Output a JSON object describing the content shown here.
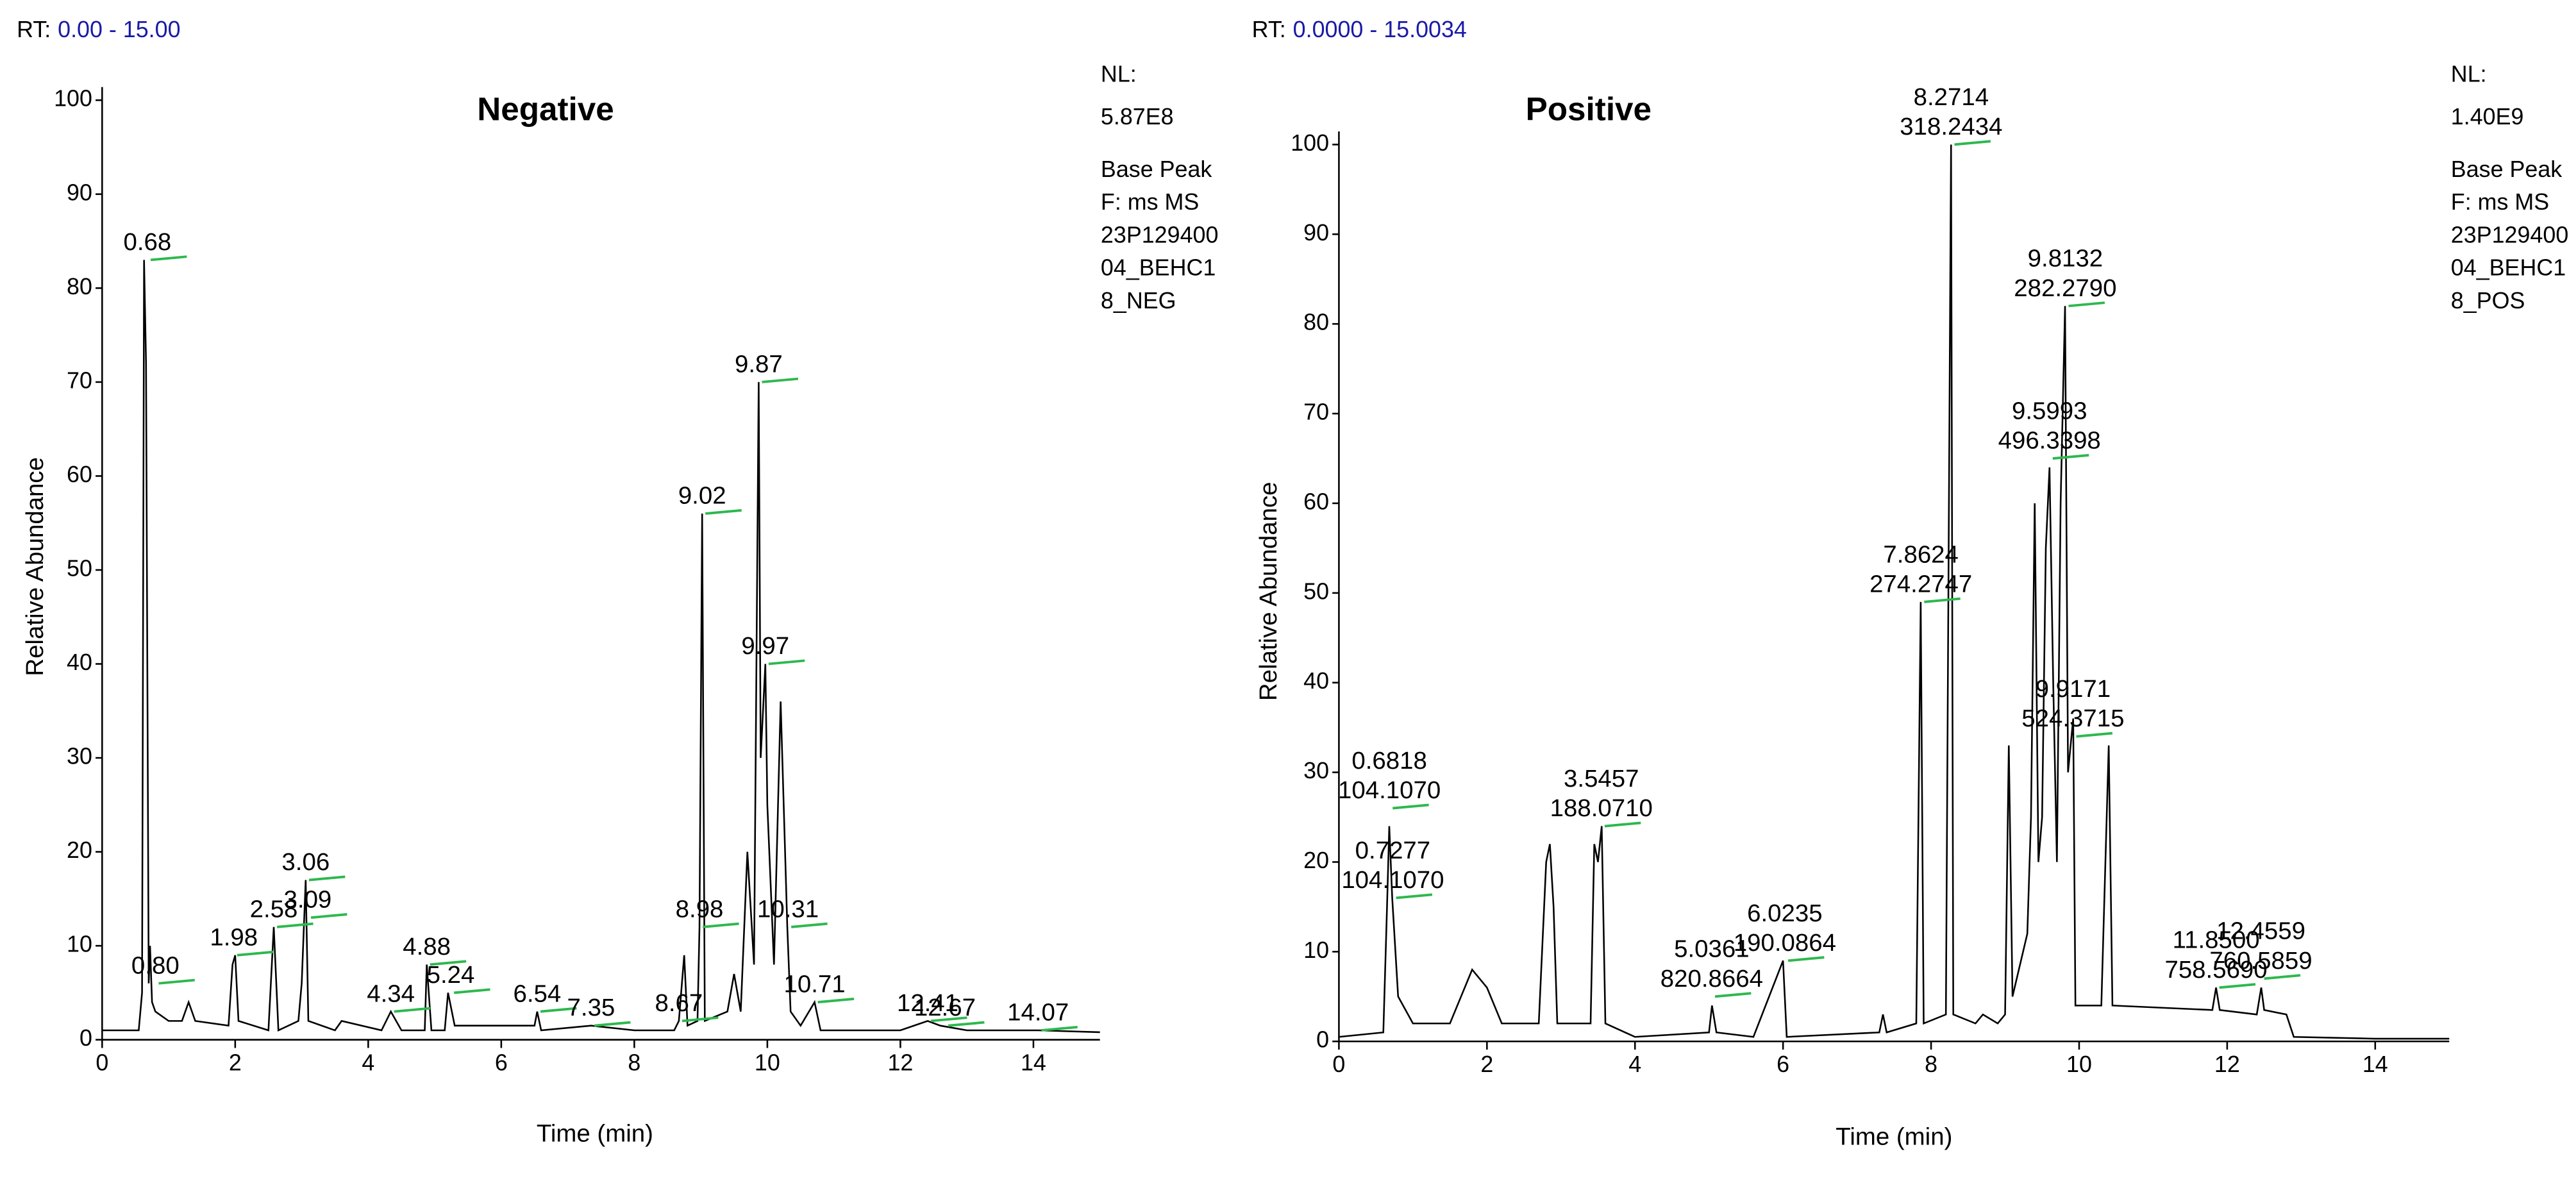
{
  "chart_data": [
    {
      "type": "line",
      "title": "Negative",
      "rt_label": "RT:",
      "rt_range": "0.00 - 15.00",
      "info": [
        "NL:",
        "5.87E8",
        "Base Peak",
        "F: ms  MS",
        "23P129400",
        "04_BEHC1",
        "8_NEG"
      ],
      "x_label": "Time (min)",
      "y_label": "Relative Abundance",
      "color": "#000000",
      "x": [
        0,
        0.55,
        0.6,
        0.63,
        0.66,
        0.7,
        0.72,
        0.75,
        0.8,
        1.0,
        1.2,
        1.3,
        1.4,
        1.9,
        1.96,
        2.0,
        2.05,
        2.5,
        2.58,
        2.65,
        2.95,
        3.0,
        3.06,
        3.1,
        3.5,
        3.6,
        4.2,
        4.34,
        4.5,
        4.85,
        4.88,
        4.95,
        5.15,
        5.2,
        5.3,
        6.5,
        6.54,
        6.6,
        7.35,
        8.0,
        8.6,
        8.67,
        8.75,
        8.8,
        8.95,
        8.98,
        9.02,
        9.06,
        9.4,
        9.5,
        9.6,
        9.7,
        9.8,
        9.87,
        9.9,
        9.97,
        10.0,
        10.1,
        10.2,
        10.3,
        10.35,
        10.5,
        10.71,
        10.8,
        12.0,
        12.41,
        12.6,
        13.0,
        14.0,
        14.07,
        15
      ],
      "values": [
        1,
        1,
        5,
        83,
        72,
        6,
        10,
        4,
        3,
        2,
        2,
        4,
        2,
        1.5,
        8,
        9,
        2,
        1,
        12,
        1,
        2,
        6,
        17,
        2,
        1,
        2,
        1,
        3,
        1,
        1,
        8,
        1,
        1,
        5,
        1.5,
        1.5,
        3,
        1,
        1.5,
        1,
        1,
        2,
        9,
        1.5,
        2,
        12,
        56,
        2,
        3,
        7,
        3,
        20,
        8,
        70,
        30,
        40,
        25,
        8,
        36,
        12,
        3,
        1.5,
        4,
        1,
        1,
        2,
        1.5,
        1,
        1,
        1,
        0.8
      ],
      "annotations": [
        {
          "x": 0.68,
          "y": 83,
          "lines": [
            "0.68"
          ]
        },
        {
          "x": 0.8,
          "y": 6,
          "lines": [
            "0.80"
          ]
        },
        {
          "x": 1.98,
          "y": 9,
          "lines": [
            "1.98"
          ]
        },
        {
          "x": 2.58,
          "y": 12,
          "lines": [
            "2.58"
          ]
        },
        {
          "x": 3.06,
          "y": 17,
          "lines": [
            "3.06"
          ]
        },
        {
          "x": 3.09,
          "y": 13,
          "lines": [
            "3.09"
          ]
        },
        {
          "x": 4.34,
          "y": 3,
          "lines": [
            "4.34"
          ]
        },
        {
          "x": 4.88,
          "y": 8,
          "lines": [
            "4.88"
          ]
        },
        {
          "x": 5.24,
          "y": 5,
          "lines": [
            "5.24"
          ]
        },
        {
          "x": 6.54,
          "y": 3,
          "lines": [
            "6.54"
          ]
        },
        {
          "x": 7.35,
          "y": 1.5,
          "lines": [
            "7.35"
          ]
        },
        {
          "x": 8.67,
          "y": 2,
          "lines": [
            "8.67"
          ]
        },
        {
          "x": 8.98,
          "y": 12,
          "lines": [
            "8.98"
          ]
        },
        {
          "x": 9.02,
          "y": 56,
          "lines": [
            "9.02"
          ]
        },
        {
          "x": 9.87,
          "y": 70,
          "lines": [
            "9.87"
          ]
        },
        {
          "x": 9.97,
          "y": 40,
          "lines": [
            "9.97"
          ]
        },
        {
          "x": 10.31,
          "y": 12,
          "lines": [
            "10.31"
          ]
        },
        {
          "x": 10.71,
          "y": 4,
          "lines": [
            "10.71"
          ]
        },
        {
          "x": 12.41,
          "y": 2,
          "lines": [
            "12.41"
          ]
        },
        {
          "x": 12.67,
          "y": 1.5,
          "lines": [
            "12.67"
          ]
        },
        {
          "x": 14.07,
          "y": 1,
          "lines": [
            "14.07"
          ]
        }
      ],
      "xlim": [
        0,
        15
      ],
      "xticks": [
        0,
        2,
        4,
        6,
        8,
        10,
        12,
        14
      ],
      "ylim": [
        0,
        100
      ],
      "yticks": [
        0,
        10,
        20,
        30,
        40,
        50,
        60,
        70,
        80,
        90,
        100
      ]
    },
    {
      "type": "line",
      "title": "Positive",
      "rt_label": "RT:",
      "rt_range": "0.0000 - 15.0034",
      "info": [
        "NL:",
        "1.40E9",
        "Base Peak",
        "F: ms  MS",
        "23P129400",
        "04_BEHC1",
        "8_POS"
      ],
      "x_label": "Time (min)",
      "y_label": "Relative Abundance",
      "color": "#000000",
      "x": [
        0,
        0.6,
        0.65,
        0.68,
        0.72,
        0.8,
        1.0,
        1.5,
        1.7,
        1.8,
        1.9,
        2.0,
        2.2,
        2.7,
        2.8,
        2.85,
        2.9,
        2.95,
        3.4,
        3.45,
        3.5,
        3.55,
        3.6,
        4.0,
        5.0,
        5.04,
        5.1,
        5.6,
        6.0,
        6.05,
        7.3,
        7.35,
        7.4,
        7.8,
        7.86,
        7.9,
        8.2,
        8.27,
        8.3,
        8.6,
        8.7,
        8.9,
        9.0,
        9.05,
        9.1,
        9.3,
        9.35,
        9.4,
        9.45,
        9.5,
        9.55,
        9.6,
        9.65,
        9.7,
        9.75,
        9.81,
        9.85,
        9.92,
        9.95,
        10.3,
        10.4,
        10.45,
        11.8,
        11.85,
        11.9,
        12.4,
        12.46,
        12.5,
        12.8,
        12.9,
        14,
        15
      ],
      "values": [
        0.5,
        1,
        15,
        24,
        16,
        5,
        2,
        2,
        6,
        8,
        7,
        6,
        2,
        2,
        20,
        22,
        15,
        2,
        2,
        22,
        20,
        24,
        2,
        0.5,
        1,
        4,
        1,
        0.5,
        9,
        0.5,
        1,
        3,
        1,
        2,
        49,
        2,
        3,
        100,
        3,
        2,
        3,
        2,
        3,
        33,
        5,
        12,
        25,
        60,
        20,
        25,
        55,
        64,
        40,
        20,
        60,
        82,
        30,
        36,
        4,
        4,
        33,
        4,
        3.5,
        6,
        3.5,
        3,
        6,
        3.5,
        3,
        0.5,
        0.3,
        0.3
      ],
      "annotations": [
        {
          "x": 0.6818,
          "y": 26,
          "lines": [
            "0.6818",
            "104.1070"
          ]
        },
        {
          "x": 0.7277,
          "y": 16,
          "lines": [
            "0.7277",
            "104.1070"
          ]
        },
        {
          "x": 3.5457,
          "y": 24,
          "lines": [
            "3.5457",
            "188.0710"
          ]
        },
        {
          "x": 5.0361,
          "y": 5,
          "lines": [
            "5.0361",
            "820.8664"
          ]
        },
        {
          "x": 6.0235,
          "y": 9,
          "lines": [
            "6.0235",
            "190.0864"
          ]
        },
        {
          "x": 7.8624,
          "y": 49,
          "lines": [
            "7.8624",
            "274.2747"
          ]
        },
        {
          "x": 8.2714,
          "y": 100,
          "lines": [
            "8.2714",
            "318.2434"
          ]
        },
        {
          "x": 9.5993,
          "y": 65,
          "lines": [
            "9.5993",
            "496.3398"
          ]
        },
        {
          "x": 9.8132,
          "y": 82,
          "lines": [
            "9.8132",
            "282.2790"
          ]
        },
        {
          "x": 9.9171,
          "y": 34,
          "lines": [
            "9.9171",
            "524.3715"
          ]
        },
        {
          "x": 11.85,
          "y": 6,
          "lines": [
            "11.8500",
            "758.5690"
          ]
        },
        {
          "x": 12.4559,
          "y": 7,
          "lines": [
            "12.4559",
            "760.5859"
          ]
        }
      ],
      "xlim": [
        0,
        15
      ],
      "xticks": [
        0,
        2,
        4,
        6,
        8,
        10,
        12,
        14
      ],
      "ylim": [
        0,
        100
      ],
      "yticks": [
        0,
        10,
        20,
        30,
        40,
        50,
        60,
        70,
        80,
        90,
        100
      ]
    }
  ]
}
